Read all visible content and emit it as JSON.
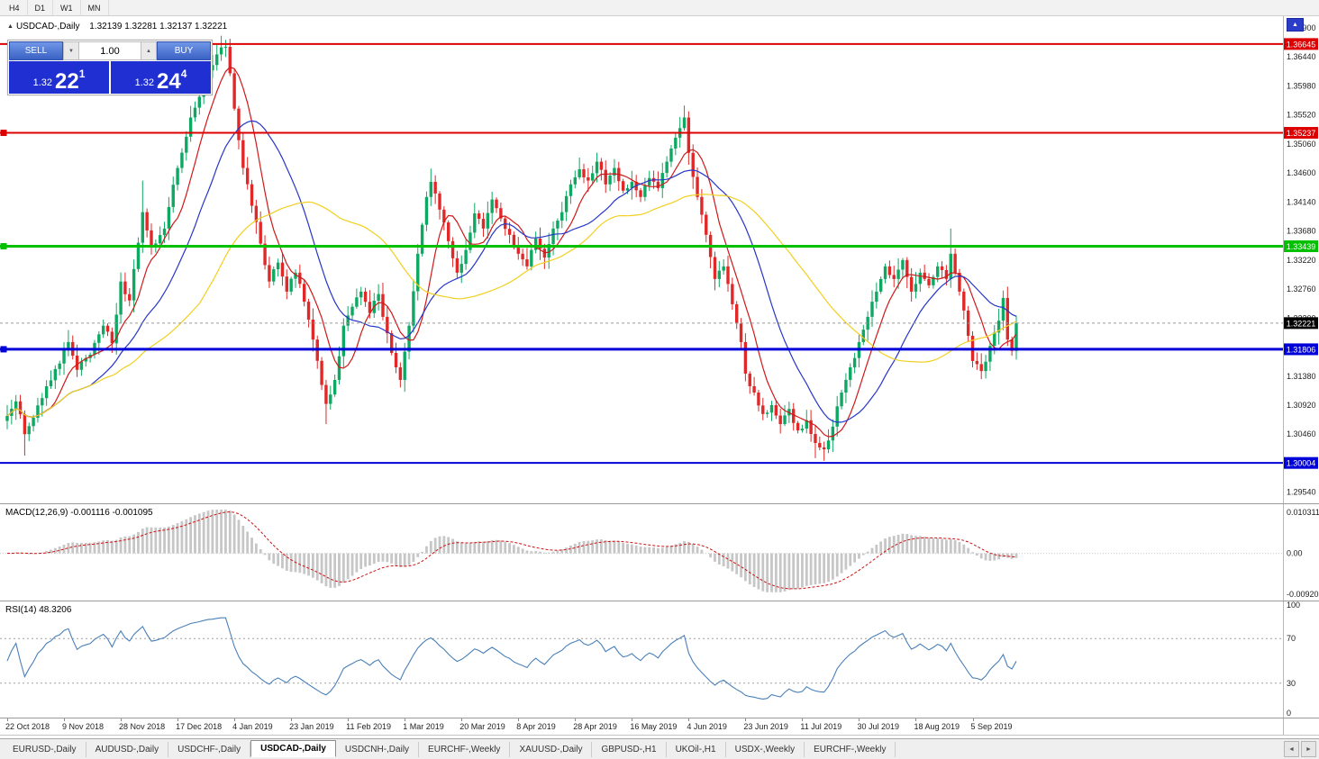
{
  "toolbar": {
    "timeframes": [
      "H4",
      "D1",
      "W1",
      "MN"
    ]
  },
  "chart": {
    "symbol_title": "USDCAD-,Daily",
    "ohlc": "1.32139 1.32281 1.32137 1.32221"
  },
  "icons": {
    "collapse": "▲",
    "spinner_down": "▼",
    "spinner_up": "▲",
    "axis_button": "▲",
    "tab_left": "◄",
    "tab_right": "►"
  },
  "trade_panel": {
    "sell_label": "SELL",
    "buy_label": "BUY",
    "volume": "1.00",
    "sell_price_small": "1.32",
    "sell_price_big": "22",
    "sell_price_sup": "1",
    "buy_price_small": "1.32",
    "buy_price_big": "24",
    "buy_price_sup": "4"
  },
  "price_axis": {
    "ticks": [
      "1.36900",
      "1.36440",
      "1.35980",
      "1.35520",
      "1.35060",
      "1.34600",
      "1.34140",
      "1.33680",
      "1.33220",
      "1.32760",
      "1.32300",
      "1.31840",
      "1.31380",
      "1.30920",
      "1.30460",
      "1.30000",
      "1.29540"
    ]
  },
  "levels": [
    {
      "price": 1.36645,
      "label": "1.36645",
      "color": "#dd0000",
      "width": 2,
      "marker": false
    },
    {
      "price": 1.35237,
      "label": "1.35237",
      "color": "#dd0000",
      "width": 2,
      "marker": true
    },
    {
      "price": 1.33439,
      "label": "1.33439",
      "color": "#00c000",
      "width": 3,
      "marker": true
    },
    {
      "price": 1.31806,
      "label": "1.31806",
      "color": "#0000d8",
      "width": 3,
      "marker": true
    },
    {
      "price": 1.30004,
      "label": "1.30004",
      "color": "#0000d8",
      "width": 2,
      "marker": false
    }
  ],
  "current_price": {
    "value": 1.32221,
    "label": "1.32221",
    "tag_color": "#000000",
    "line_color": "#999999"
  },
  "macd": {
    "label": "MACD(12,26,9) -0.001116 -0.001095",
    "axis_labels": [
      "0.010311",
      "0.00",
      "-0.009203"
    ],
    "range": [
      -0.009203,
      0.010311
    ],
    "fast": 12,
    "slow": 26,
    "signal": 9,
    "bar_color": "#c6c6c6",
    "signal_color": "#cc1111"
  },
  "rsi": {
    "label": "RSI(14) 48.3206",
    "axis_labels": [
      "100",
      "70",
      "30",
      "0"
    ],
    "levels": [
      70,
      30
    ],
    "period": 14,
    "line_color": "#4a80b8"
  },
  "date_axis": [
    "22 Oct 2018",
    "9 Nov 2018",
    "28 Nov 2018",
    "17 Dec 2018",
    "4 Jan 2019",
    "23 Jan 2019",
    "11 Feb 2019",
    "1 Mar 2019",
    "20 Mar 2019",
    "8 Apr 2019",
    "28 Apr 2019",
    "16 May 2019",
    "4 Jun 2019",
    "23 Jun 2019",
    "11 Jul 2019",
    "30 Jul 2019",
    "18 Aug 2019",
    "5 Sep 2019"
  ],
  "tabs": {
    "active_index": 3,
    "items": [
      "EURUSD-,Daily",
      "AUDUSD-,Daily",
      "USDCHF-,Daily",
      "USDCAD-,Daily",
      "USDCNH-,Daily",
      "EURCHF-,Weekly",
      "XAUUSD-,Daily",
      "GBPUSD-,H1",
      "UKOil-,H1",
      "USDX-,Weekly",
      "EURCHF-,Weekly"
    ]
  },
  "chart_data": {
    "type": "candlestick",
    "symbol": "USDCAD",
    "timeframe": "Daily",
    "n_candles": 232,
    "candles_per_label": 13,
    "price_top": 1.371,
    "price_bottom": 1.2935,
    "up_color": "#0fa862",
    "down_color": "#e02828",
    "noise": 0.0011,
    "wick": 0.0016,
    "close_anchors": [
      [
        0,
        1.3075
      ],
      [
        2,
        1.3098
      ],
      [
        4,
        1.3046
      ],
      [
        6,
        1.3072
      ],
      [
        9,
        1.3122
      ],
      [
        12,
        1.3158
      ],
      [
        14,
        1.3192
      ],
      [
        16,
        1.3148
      ],
      [
        19,
        1.3172
      ],
      [
        22,
        1.3218
      ],
      [
        24,
        1.319
      ],
      [
        26,
        1.3288
      ],
      [
        28,
        1.3258
      ],
      [
        31,
        1.3398
      ],
      [
        33,
        1.3342
      ],
      [
        36,
        1.3372
      ],
      [
        39,
        1.3468
      ],
      [
        42,
        1.3548
      ],
      [
        45,
        1.3602
      ],
      [
        48,
        1.3648
      ],
      [
        50,
        1.366
      ],
      [
        51,
        1.3618
      ],
      [
        52,
        1.3562
      ],
      [
        54,
        1.3468
      ],
      [
        56,
        1.3408
      ],
      [
        58,
        1.3348
      ],
      [
        60,
        1.3288
      ],
      [
        62,
        1.3318
      ],
      [
        64,
        1.3272
      ],
      [
        66,
        1.3302
      ],
      [
        68,
        1.3256
      ],
      [
        70,
        1.3196
      ],
      [
        72,
        1.3124
      ],
      [
        73,
        1.3094
      ],
      [
        75,
        1.3132
      ],
      [
        77,
        1.3218
      ],
      [
        79,
        1.3248
      ],
      [
        81,
        1.3272
      ],
      [
        83,
        1.3238
      ],
      [
        85,
        1.3268
      ],
      [
        87,
        1.3206
      ],
      [
        89,
        1.3152
      ],
      [
        90,
        1.3132
      ],
      [
        92,
        1.3218
      ],
      [
        94,
        1.3332
      ],
      [
        96,
        1.3422
      ],
      [
        97,
        1.3446
      ],
      [
        99,
        1.3402
      ],
      [
        101,
        1.3352
      ],
      [
        103,
        1.3302
      ],
      [
        105,
        1.3338
      ],
      [
        107,
        1.3396
      ],
      [
        109,
        1.3372
      ],
      [
        111,
        1.3418
      ],
      [
        113,
        1.3388
      ],
      [
        115,
        1.3362
      ],
      [
        117,
        1.3332
      ],
      [
        119,
        1.3312
      ],
      [
        121,
        1.3356
      ],
      [
        123,
        1.3326
      ],
      [
        125,
        1.3372
      ],
      [
        127,
        1.3398
      ],
      [
        129,
        1.3442
      ],
      [
        131,
        1.3466
      ],
      [
        133,
        1.3448
      ],
      [
        135,
        1.3478
      ],
      [
        137,
        1.3442
      ],
      [
        139,
        1.3468
      ],
      [
        141,
        1.3432
      ],
      [
        143,
        1.3446
      ],
      [
        145,
        1.3422
      ],
      [
        147,
        1.3452
      ],
      [
        149,
        1.3436
      ],
      [
        151,
        1.3478
      ],
      [
        153,
        1.3516
      ],
      [
        155,
        1.3548
      ],
      [
        156,
        1.3492
      ],
      [
        158,
        1.3422
      ],
      [
        160,
        1.3362
      ],
      [
        162,
        1.3292
      ],
      [
        164,
        1.3312
      ],
      [
        166,
        1.3252
      ],
      [
        168,
        1.3192
      ],
      [
        169,
        1.3142
      ],
      [
        171,
        1.3112
      ],
      [
        173,
        1.3078
      ],
      [
        175,
        1.3092
      ],
      [
        177,
        1.3062
      ],
      [
        179,
        1.3086
      ],
      [
        181,
        1.3052
      ],
      [
        183,
        1.3068
      ],
      [
        185,
        1.3032
      ],
      [
        187,
        1.3022
      ],
      [
        189,
        1.3058
      ],
      [
        191,
        1.3112
      ],
      [
        193,
        1.3152
      ],
      [
        195,
        1.3192
      ],
      [
        197,
        1.3232
      ],
      [
        199,
        1.3272
      ],
      [
        201,
        1.3312
      ],
      [
        203,
        1.3292
      ],
      [
        205,
        1.3322
      ],
      [
        207,
        1.3272
      ],
      [
        209,
        1.3302
      ],
      [
        211,
        1.3282
      ],
      [
        213,
        1.3312
      ],
      [
        215,
        1.3292
      ],
      [
        216,
        1.3332
      ],
      [
        218,
        1.3272
      ],
      [
        220,
        1.3202
      ],
      [
        221,
        1.3162
      ],
      [
        223,
        1.3146
      ],
      [
        225,
        1.3186
      ],
      [
        227,
        1.3226
      ],
      [
        228,
        1.3262
      ],
      [
        229,
        1.3196
      ],
      [
        230,
        1.3178
      ],
      [
        231,
        1.3222
      ]
    ],
    "wick_events": [
      {
        "i": 4,
        "l": 1.3012
      },
      {
        "i": 31,
        "h": 1.3448
      },
      {
        "i": 48,
        "h": 1.3662
      },
      {
        "i": 50,
        "h": 1.36645
      },
      {
        "i": 73,
        "l": 1.3062
      },
      {
        "i": 97,
        "h": 1.3467
      },
      {
        "i": 155,
        "h": 1.3566
      },
      {
        "i": 185,
        "l": 1.3008
      },
      {
        "i": 187,
        "l": 1.30045
      },
      {
        "i": 216,
        "h": 1.3372
      }
    ],
    "moving_averages": [
      {
        "period": 8,
        "color": "#d01818"
      },
      {
        "period": 20,
        "color": "#2636c8"
      },
      {
        "period": 45,
        "color": "#f2cf1f"
      }
    ]
  }
}
